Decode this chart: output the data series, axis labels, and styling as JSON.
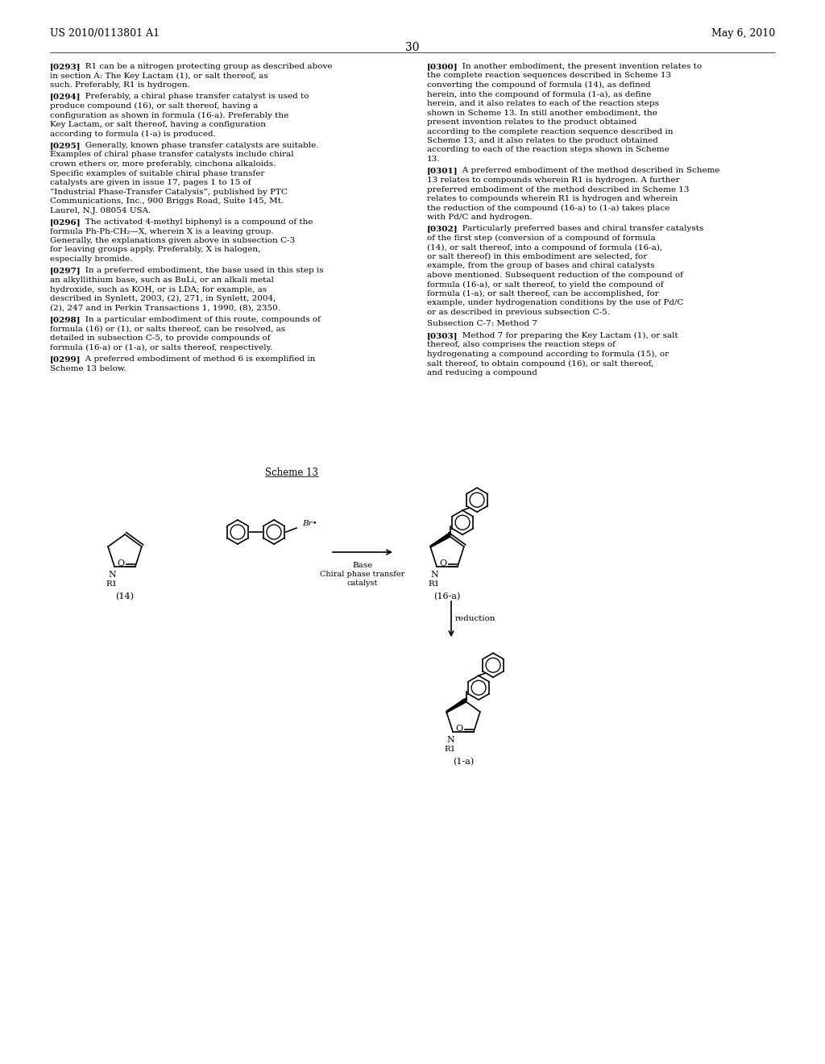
{
  "page_number": "30",
  "patent_number": "US 2010/0113801 A1",
  "patent_date": "May 6, 2010",
  "background_color": "#ffffff",
  "text_color": "#000000",
  "left_column_paragraphs": [
    {
      "tag": "[0293]",
      "text": "R1 can be a nitrogen protecting group as described above in section A: The Key Lactam (1), or salt thereof, as such. Preferably, R1 is hydrogen."
    },
    {
      "tag": "[0294]",
      "text": "Preferably, a chiral phase transfer catalyst is used to produce compound (16), or salt thereof, having a configuration as shown in formula (16-a). Preferably the Key Lactam, or salt thereof, having a configuration according to formula (1-a) is produced."
    },
    {
      "tag": "[0295]",
      "text": "Generally, known phase transfer catalysts are suitable. Examples of chiral phase transfer catalysts include chiral crown ethers or, more preferably, cinchona alkaloids. Specific examples of suitable chiral phase transfer catalysts are given in issue 17, pages 1 to 15 of “Industrial Phase-Transfer Catalysis”, published by PTC Communications, Inc., 900 Briggs Road, Suite 145, Mt. Laurel, N.J. 08054 USA."
    },
    {
      "tag": "[0296]",
      "text": "The activated 4-methyl biphenyl is a compound of the formula Ph-Ph-CH₂—X, wherein X is a leaving group. Generally, the explanations given above in subsection C-3 for leaving groups apply. Preferably, X is halogen, especially bromide."
    },
    {
      "tag": "[0297]",
      "text": "In a preferred embodiment, the base used in this step is an alkyllithium base, such as BuLi, or an alkali metal hydroxide, such as KOH, or is LDA; for example, as described in Synlett, 2003, (2), 271, in Synlett, 2004, (2), 247 and in Perkin Transactions 1, 1990, (8), 2350."
    },
    {
      "tag": "[0298]",
      "text": "In a particular embodiment of this route, compounds of formula (16) or (1), or salts thereof, can be resolved, as detailed in subsection C-5, to provide compounds of formula (16-a) or (1-a), or salts thereof, respectively."
    },
    {
      "tag": "[0299]",
      "text": "A preferred embodiment of method 6 is exemplified in Scheme 13 below."
    }
  ],
  "right_column_paragraphs": [
    {
      "tag": "[0300]",
      "text": "In another embodiment, the present invention relates to the complete reaction sequences described in Scheme 13 converting the compound of formula (14), as defined herein, into the compound of formula (1-a), as define herein, and it also relates to each of the reaction steps shown in Scheme 13. In still another embodiment, the present invention relates to the product obtained according to the complete reaction sequence described in Scheme 13, and it also relates to the product obtained according to each of the reaction steps shown in Scheme 13."
    },
    {
      "tag": "[0301]",
      "text": "A preferred embodiment of the method described in Scheme 13 relates to compounds wherein R1 is hydrogen. A further preferred embodiment of the method described in Scheme 13 relates to compounds wherein R1 is hydrogen and wherein the reduction of the compound (16-a) to (1-a) takes place with Pd/C and hydrogen."
    },
    {
      "tag": "[0302]",
      "text": "Particularly preferred bases and chiral transfer catalysts of the first step (conversion of a compound of formula (14), or salt thereof, into a compound of formula (16-a), or salt thereof) in this embodiment are selected, for example, from the group of bases and chiral catalysts above mentioned. Subsequent reduction of the compound of formula (16-a), or salt thereof, to yield the compound of formula (1-a), or salt thereof, can be accomplished, for example, under hydrogenation conditions by the use of Pd/C or as described in previous subsection C-5."
    },
    {
      "tag": "subsection",
      "text": "Subsection C-7: Method 7"
    },
    {
      "tag": "[0303]",
      "text": "Method 7 for preparing the Key Lactam (1), or salt thereof, also comprises the reaction steps of hydrogenating a compound according to formula (15), or salt thereof, to obtain compound (16), or salt thereof, and reducing a compound"
    }
  ],
  "scheme_label": "Scheme 13",
  "compound_14_label": "(14)",
  "compound_16a_label": "(16-a)",
  "compound_1a_label": "(1-a)",
  "arrow_label_top": "Base\nChiral phase transfer\ncatalyst",
  "arrow_label_bottom": "reduction"
}
